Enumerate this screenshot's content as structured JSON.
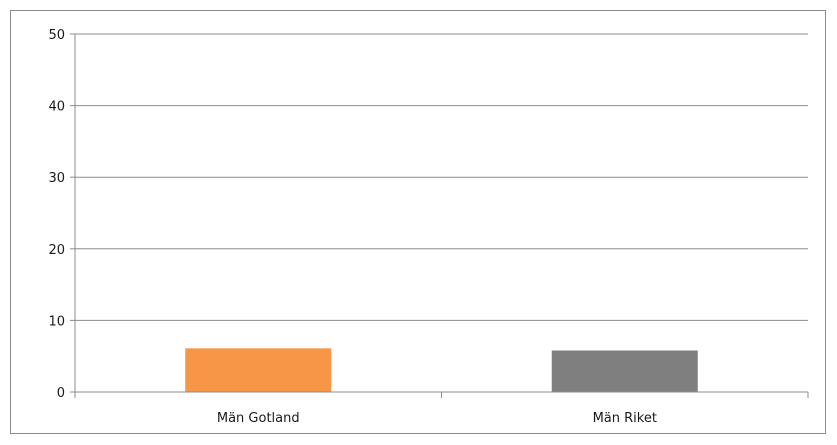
{
  "chart_data": {
    "type": "bar",
    "title": "",
    "xlabel": "",
    "ylabel": "",
    "categories": [
      "Män Gotland",
      "Män Riket"
    ],
    "series": [
      {
        "values": [
          6.1,
          5.8
        ]
      }
    ],
    "colors": [
      "#F79646",
      "#7F7F7F"
    ],
    "ylim": [
      0,
      50
    ],
    "yticks": [
      "0",
      "10",
      "20",
      "30",
      "40",
      "50"
    ],
    "grid": true,
    "legend": "none"
  }
}
